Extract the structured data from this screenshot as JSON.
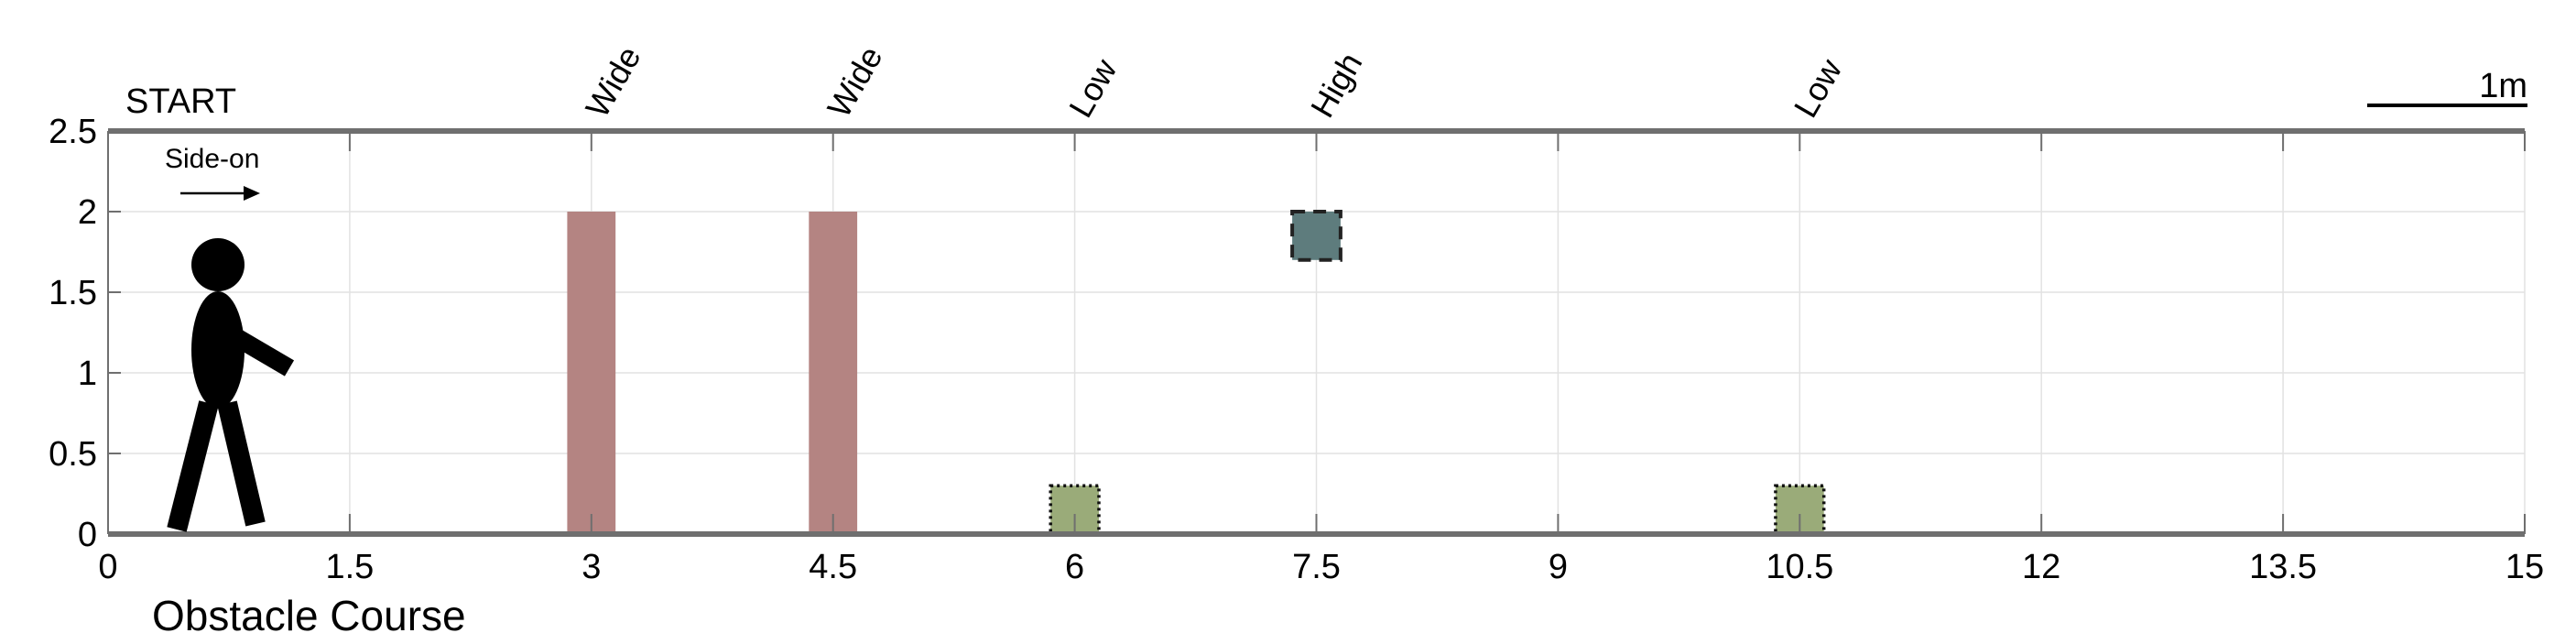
{
  "course": {
    "title": "Obstacle Course",
    "start_label": "START",
    "direction_label": "Side-on",
    "scale_label": "1m"
  },
  "colors": {
    "wide": "#b48482",
    "low": "#9aab79",
    "high": "#5e7c7d",
    "axis": "#6f6f6f",
    "grid": "#e2e2e2"
  },
  "chart_data": {
    "type": "diagram",
    "xlim": [
      0,
      15
    ],
    "ylim": [
      0,
      2.5
    ],
    "x_ticks": [
      "0",
      "1.5",
      "3",
      "4.5",
      "6",
      "7.5",
      "9",
      "10.5",
      "12",
      "13.5",
      "15"
    ],
    "x_tick_values": [
      0,
      1.5,
      3,
      4.5,
      6,
      7.5,
      9,
      10.5,
      12,
      13.5,
      15
    ],
    "y_ticks": [
      "0",
      "0.5",
      "1",
      "1.5",
      "2",
      "2.5"
    ],
    "y_tick_values": [
      0,
      0.5,
      1,
      1.5,
      2,
      2.5
    ],
    "grid": true,
    "obstacles": [
      {
        "label": "Wide",
        "x": 3.0,
        "width": 0.3,
        "y_bottom": 0,
        "y_top": 2.0,
        "kind": "wide"
      },
      {
        "label": "Wide",
        "x": 4.5,
        "width": 0.3,
        "y_bottom": 0,
        "y_top": 2.0,
        "kind": "wide"
      },
      {
        "label": "Low",
        "x": 6.0,
        "width": 0.3,
        "y_bottom": 0,
        "y_top": 0.3,
        "kind": "low"
      },
      {
        "label": "High",
        "x": 7.5,
        "width": 0.3,
        "y_bottom": 1.7,
        "y_top": 2.0,
        "kind": "high"
      },
      {
        "label": "Low",
        "x": 10.5,
        "width": 0.3,
        "y_bottom": 0,
        "y_top": 0.3,
        "kind": "low"
      }
    ]
  }
}
